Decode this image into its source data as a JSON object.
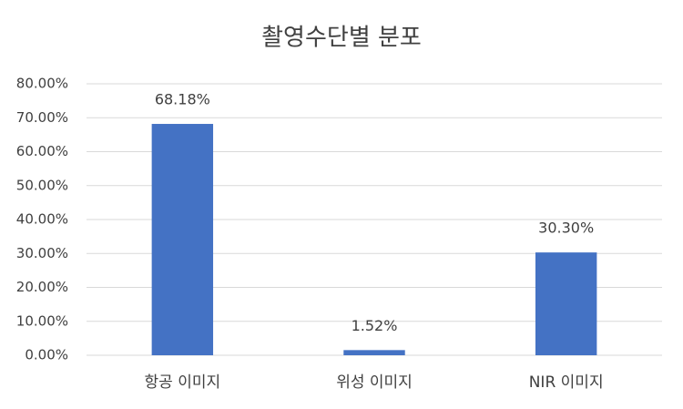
{
  "chart_data": {
    "type": "bar",
    "title": "촬영수단별 분포",
    "categories": [
      "항공 이미지",
      "위성 이미지",
      "NIR 이미지"
    ],
    "values": [
      68.18,
      1.52,
      30.3
    ],
    "value_labels": [
      "68.18%",
      "1.52%",
      "30.30%"
    ],
    "color": "#4472c4",
    "ylim": [
      0,
      80
    ],
    "yticks": [
      {
        "value": 0,
        "label": "0.00%"
      },
      {
        "value": 10,
        "label": "10.00%"
      },
      {
        "value": 20,
        "label": "20.00%"
      },
      {
        "value": 30,
        "label": "30.00%"
      },
      {
        "value": 40,
        "label": "40.00%"
      },
      {
        "value": 50,
        "label": "50.00%"
      },
      {
        "value": 60,
        "label": "60.00%"
      },
      {
        "value": 70,
        "label": "70.00%"
      },
      {
        "value": 80,
        "label": "80.00%"
      }
    ],
    "grid": true
  }
}
